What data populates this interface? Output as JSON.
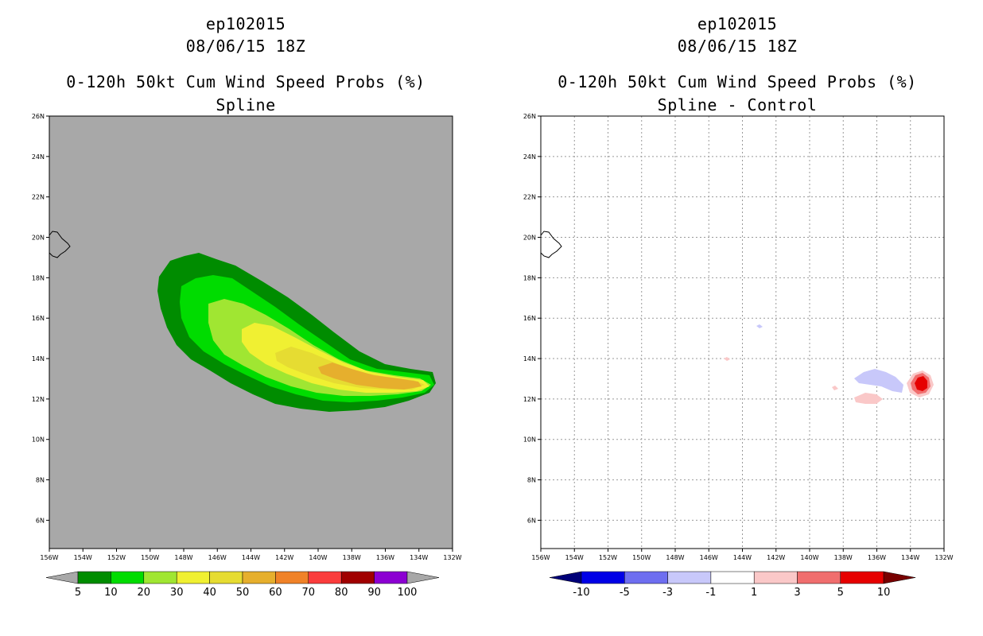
{
  "left": {
    "title_storm": "ep102015",
    "title_date": "08/06/15 18Z",
    "title_product": "0-120h 50kt Cum Wind Speed Probs (%)",
    "title_method": "Spline",
    "colorbar": {
      "colors": [
        "#008c00",
        "#00dc00",
        "#a0e632",
        "#f0f032",
        "#e6dc32",
        "#e6af2d",
        "#f08228",
        "#fa3c3c",
        "#a00000",
        "#8c00d2"
      ],
      "labels": [
        "5",
        "10",
        "20",
        "30",
        "40",
        "50",
        "60",
        "70",
        "80",
        "90",
        "100"
      ],
      "under_color": "#a8a8a8",
      "over_color": "#a8a8a8"
    }
  },
  "right": {
    "title_storm": "ep102015",
    "title_date": "08/06/15 18Z",
    "title_product": "0-120h 50kt Cum Wind Speed Probs (%)",
    "title_method": "Spline - Control",
    "colorbar": {
      "colors": [
        "#0000e6",
        "#6e6ef0",
        "#c8c8fa",
        "#ffffff",
        "#fac8c8",
        "#f06e6e",
        "#e60000"
      ],
      "labels": [
        "-10",
        "-5",
        "-3",
        "-1",
        "1",
        "3",
        "5",
        "10"
      ],
      "under_color": "#000078",
      "over_color": "#780000"
    }
  },
  "axes": {
    "x_ticks": [
      "156W",
      "154W",
      "152W",
      "150W",
      "148W",
      "146W",
      "144W",
      "142W",
      "140W",
      "138W",
      "136W",
      "134W",
      "132W"
    ],
    "y_ticks": [
      "6N",
      "8N",
      "10N",
      "12N",
      "14N",
      "16N",
      "18N",
      "20N",
      "22N",
      "24N",
      "26N"
    ],
    "xlim": [
      -156,
      -132
    ],
    "ylim": [
      4.6,
      26
    ],
    "background_left": "#a8a8a8",
    "background_right": "#ffffff",
    "grid_right": true
  }
}
